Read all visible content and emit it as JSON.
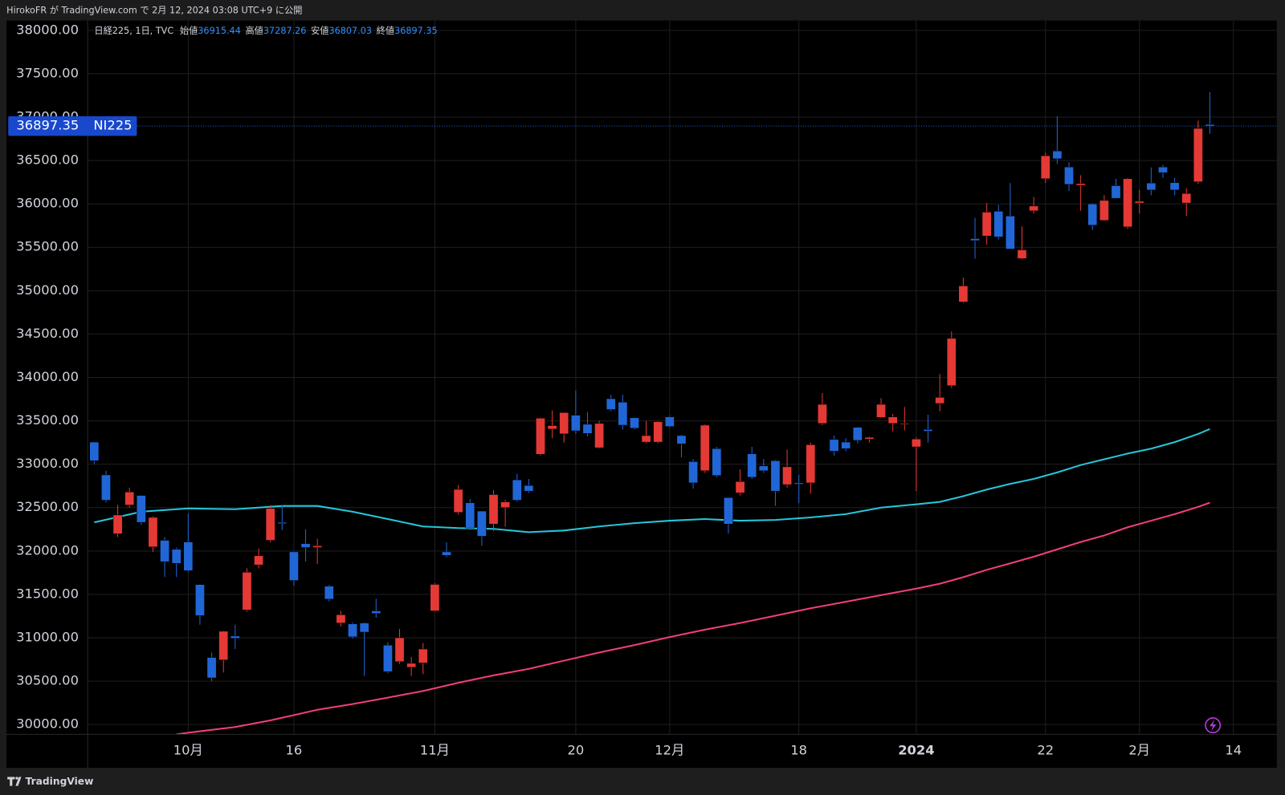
{
  "header": {
    "text": "HirokoFR が TradingView.com で 2月 12, 2024 03:08 UTC+9 に公開"
  },
  "footer": {
    "brand": "TradingView"
  },
  "chart_data": {
    "type": "candlestick",
    "legend": {
      "name": "日経225, 1日, TVC",
      "open_label": "始値",
      "high_label": "高値",
      "low_label": "安値",
      "close_label": "終値"
    },
    "symbol": "NI225",
    "up_color": "#e53935",
    "down_color": "#2166d6",
    "ylim": [
      29887,
      38113
    ],
    "yticks": [
      {
        "value": 30000,
        "label": "30000.00"
      },
      {
        "value": 30500,
        "label": "30500.00"
      },
      {
        "value": 31000,
        "label": "31000.00"
      },
      {
        "value": 31500,
        "label": "31500.00"
      },
      {
        "value": 32000,
        "label": "32000.00"
      },
      {
        "value": 32500,
        "label": "32500.00"
      },
      {
        "value": 33000,
        "label": "33000.00"
      },
      {
        "value": 33500,
        "label": "33500.00"
      },
      {
        "value": 34000,
        "label": "34000.00"
      },
      {
        "value": 34500,
        "label": "34500.00"
      },
      {
        "value": 35000,
        "label": "35000.00"
      },
      {
        "value": 35500,
        "label": "35500.00"
      },
      {
        "value": 36000,
        "label": "36000.00"
      },
      {
        "value": 36500,
        "label": "36500.00"
      },
      {
        "value": 37000,
        "label": "37000.00"
      },
      {
        "value": 37500,
        "label": "37500.00"
      },
      {
        "value": 38000,
        "label": "38000.00"
      }
    ],
    "grid": true,
    "categories": [
      null,
      null,
      null,
      null,
      null,
      null,
      null,
      null,
      "10月",
      null,
      null,
      null,
      null,
      null,
      null,
      null,
      null,
      "16",
      null,
      null,
      null,
      null,
      null,
      null,
      null,
      null,
      null,
      null,
      null,
      "11月",
      null,
      null,
      null,
      null,
      null,
      null,
      null,
      null,
      null,
      null,
      null,
      "20",
      null,
      null,
      null,
      null,
      null,
      null,
      null,
      "12月",
      null,
      null,
      null,
      null,
      null,
      null,
      null,
      null,
      null,
      null,
      "18",
      null,
      null,
      null,
      null,
      null,
      null,
      null,
      null,
      null,
      "2024",
      null,
      null,
      null,
      null,
      null,
      null,
      null,
      null,
      null,
      null,
      "22",
      null,
      null,
      null,
      null,
      null,
      null,
      null,
      "2月",
      null,
      null,
      null,
      null,
      null,
      null,
      null,
      "14"
    ],
    "open": [
      33255,
      32877,
      32198,
      32530,
      32640,
      32047,
      32123,
      32019,
      32104,
      31613,
      30773,
      30745,
      31020,
      31321,
      31840,
      32123,
      32330,
      31990,
      32085,
      32040,
      31595,
      31170,
      31160,
      31170,
      31310,
      30915,
      30725,
      30660,
      30710,
      31310,
      31990,
      32445,
      32555,
      32460,
      32310,
      32500,
      32820,
      32755,
      33115,
      33405,
      33350,
      33565,
      33460,
      33190,
      33755,
      33715,
      33535,
      33255,
      33255,
      33545,
      33330,
      33030,
      32925,
      33180,
      32615,
      32670,
      33120,
      32980,
      33040,
      32765,
      32785,
      32785,
      33470,
      33285,
      33255,
      33425,
      33290,
      33540,
      33470,
      33460,
      33200,
      33400,
      33700,
      33905,
      34870,
      35600,
      35630,
      35915,
      35860,
      35370,
      35920,
      36290,
      36610,
      36425,
      36215,
      36000,
      35810,
      36210,
      35735,
      36010,
      36240,
      36425,
      36245,
      36010,
      36255,
      36915.44,
      null,
      null
    ],
    "high": [
      33260,
      32925,
      32530,
      32730,
      32640,
      32400,
      32160,
      32040,
      32430,
      31620,
      30830,
      31080,
      31150,
      31800,
      32030,
      32530,
      32530,
      31990,
      32250,
      32140,
      31610,
      31310,
      31180,
      31180,
      31450,
      30950,
      31100,
      30780,
      30940,
      31630,
      32100,
      32760,
      32600,
      32460,
      32700,
      32590,
      32890,
      32830,
      33540,
      33620,
      33600,
      33850,
      33600,
      33500,
      33800,
      33800,
      33540,
      33500,
      33500,
      33560,
      33340,
      33060,
      33460,
      33200,
      32620,
      32940,
      33200,
      33060,
      33050,
      33170,
      32880,
      33250,
      33820,
      33330,
      33300,
      33430,
      33320,
      33760,
      33580,
      33660,
      33310,
      33570,
      34040,
      34530,
      35150,
      35840,
      36010,
      35990,
      36240,
      35740,
      36080,
      36590,
      37010,
      36480,
      36330,
      36010,
      36100,
      36290,
      36300,
      36160,
      36420,
      36450,
      36300,
      36180,
      36960,
      37287.26,
      null,
      null
    ],
    "low": [
      33000,
      32560,
      32160,
      32500,
      32300,
      31990,
      31700,
      31700,
      31760,
      31150,
      30500,
      30600,
      30870,
      31300,
      31800,
      32100,
      32240,
      31600,
      31880,
      31850,
      31420,
      31130,
      30990,
      30560,
      31230,
      30590,
      30700,
      30560,
      30580,
      31300,
      31930,
      32420,
      32240,
      32060,
      32230,
      32280,
      32570,
      32670,
      33100,
      33300,
      33250,
      33350,
      33320,
      33180,
      33610,
      33400,
      33400,
      33240,
      33240,
      33420,
      33080,
      32720,
      32900,
      32850,
      32200,
      32640,
      32830,
      32900,
      32520,
      32730,
      32550,
      32660,
      33450,
      33100,
      33150,
      33240,
      33250,
      33530,
      33380,
      33390,
      32690,
      33250,
      33610,
      33880,
      34860,
      35370,
      35530,
      35590,
      35480,
      35360,
      35890,
      36240,
      36460,
      36150,
      35920,
      35700,
      35800,
      36060,
      35710,
      35890,
      36100,
      36300,
      36100,
      35860,
      36230,
      36807.03,
      null,
      null
    ],
    "close": [
      33040,
      32585,
      32415,
      32680,
      32330,
      32387,
      31877,
      31858,
      31774,
      31255,
      30538,
      31075,
      30994,
      31755,
      31945,
      32490,
      32315,
      31660,
      32040,
      32060,
      31445,
      31265,
      31010,
      31065,
      31280,
      30610,
      31000,
      30705,
      30870,
      31615,
      31950,
      32710,
      32265,
      32170,
      32650,
      32565,
      32585,
      32690,
      33530,
      33445,
      33595,
      33385,
      33355,
      33470,
      33630,
      33450,
      33415,
      33330,
      33490,
      33435,
      33235,
      32785,
      33450,
      32870,
      32310,
      32800,
      32850,
      32925,
      32690,
      32970,
      32770,
      33225,
      33690,
      33150,
      33180,
      33275,
      33310,
      33690,
      33545,
      33470,
      33290,
      33380,
      33770,
      34450,
      35055,
      35577,
      35905,
      35620,
      35480,
      35470,
      35975,
      36555,
      36520,
      36225,
      36235,
      35755,
      36040,
      36065,
      36290,
      36030,
      36160,
      36360,
      36160,
      36120,
      36870,
      36897.35,
      null,
      null
    ],
    "lines": [
      {
        "color": "#26c6da",
        "x": [
          0,
          4,
          8,
          12,
          16,
          19,
          22,
          25,
          28,
          31,
          34,
          37,
          40,
          43,
          46,
          49,
          52,
          55,
          58,
          61,
          64,
          67,
          70,
          72,
          74,
          76,
          78,
          80,
          82,
          84,
          86,
          88,
          90,
          92,
          94,
          95
        ],
        "values": [
          32330,
          32453,
          32491,
          32481,
          32519,
          32519,
          32453,
          32368,
          32283,
          32264,
          32255,
          32217,
          32236,
          32283,
          32321,
          32349,
          32368,
          32349,
          32358,
          32387,
          32425,
          32500,
          32538,
          32566,
          32632,
          32708,
          32774,
          32830,
          32906,
          32991,
          33057,
          33123,
          33179,
          33255,
          33349,
          33406
        ]
      },
      {
        "color": "#f23e7c",
        "x": [
          7,
          8,
          12,
          15,
          19,
          22,
          25,
          28,
          31,
          34,
          37,
          40,
          43,
          46,
          49,
          52,
          55,
          58,
          61,
          64,
          67,
          70,
          72,
          74,
          76,
          78,
          80,
          82,
          84,
          86,
          88,
          90,
          92,
          94,
          95
        ],
        "values": [
          29887,
          29906,
          29972,
          30047,
          30170,
          30236,
          30311,
          30387,
          30481,
          30566,
          30642,
          30736,
          30830,
          30915,
          31009,
          31094,
          31170,
          31255,
          31340,
          31415,
          31491,
          31566,
          31623,
          31698,
          31783,
          31858,
          31934,
          32019,
          32104,
          32179,
          32274,
          32349,
          32425,
          32509,
          32557
        ]
      }
    ]
  }
}
